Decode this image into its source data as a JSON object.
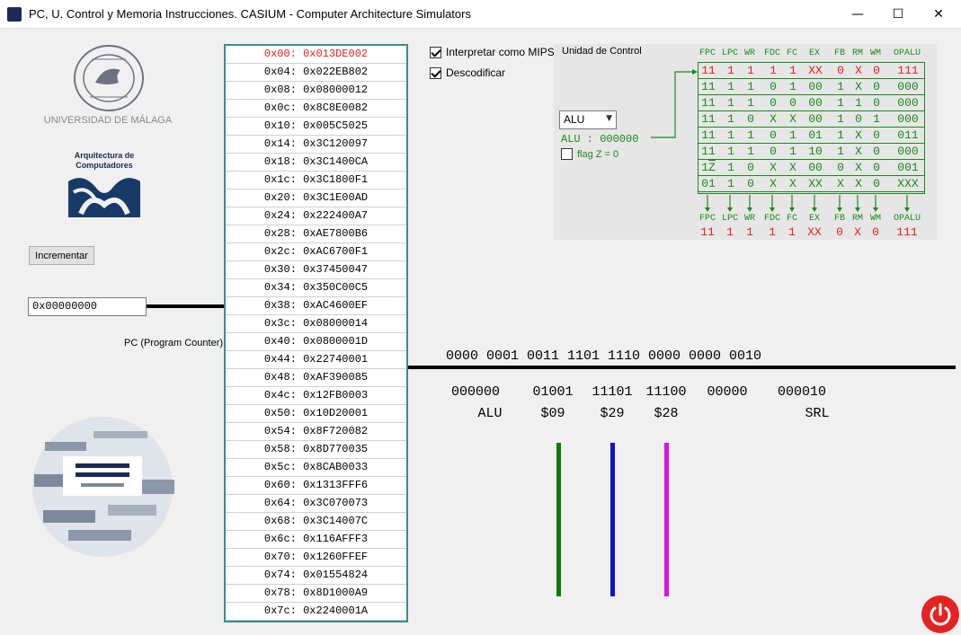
{
  "window": {
    "title": "PC, U. Control y Memoria Instrucciones. CASIUM - Computer Architecture Simulators",
    "minimize": "—",
    "maximize": "☐",
    "close": "✕"
  },
  "left": {
    "university": "UNIVERSIDAD DE MÁLAGA",
    "arq_line1": "Arquitectura de",
    "arq_line2": "Computadores",
    "increment_label": "Incrementar",
    "pc_value": "0x00000000",
    "pc_label": "PC (Program Counter)"
  },
  "memory": {
    "active_index": 0,
    "rows": [
      {
        "addr": "0x00:",
        "val": "0x013DE002"
      },
      {
        "addr": "0x04:",
        "val": "0x022EB802"
      },
      {
        "addr": "0x08:",
        "val": "0x08000012"
      },
      {
        "addr": "0x0c:",
        "val": "0x8C8E0082"
      },
      {
        "addr": "0x10:",
        "val": "0x005C5025"
      },
      {
        "addr": "0x14:",
        "val": "0x3C120097"
      },
      {
        "addr": "0x18:",
        "val": "0x3C1400CA"
      },
      {
        "addr": "0x1c:",
        "val": "0x3C1800F1"
      },
      {
        "addr": "0x20:",
        "val": "0x3C1E00AD"
      },
      {
        "addr": "0x24:",
        "val": "0x222400A7"
      },
      {
        "addr": "0x28:",
        "val": "0xAE7800B6"
      },
      {
        "addr": "0x2c:",
        "val": "0xAC6700F1"
      },
      {
        "addr": "0x30:",
        "val": "0x37450047"
      },
      {
        "addr": "0x34:",
        "val": "0x350C00C5"
      },
      {
        "addr": "0x38:",
        "val": "0xAC4600EF"
      },
      {
        "addr": "0x3c:",
        "val": "0x08000014"
      },
      {
        "addr": "0x40:",
        "val": "0x0800001D"
      },
      {
        "addr": "0x44:",
        "val": "0x22740001"
      },
      {
        "addr": "0x48:",
        "val": "0xAF390085"
      },
      {
        "addr": "0x4c:",
        "val": "0x12FB0003"
      },
      {
        "addr": "0x50:",
        "val": "0x10D20001"
      },
      {
        "addr": "0x54:",
        "val": "0x8F720082"
      },
      {
        "addr": "0x58:",
        "val": "0x8D770035"
      },
      {
        "addr": "0x5c:",
        "val": "0x8CAB0033"
      },
      {
        "addr": "0x60:",
        "val": "0x1313FFF6"
      },
      {
        "addr": "0x64:",
        "val": "0x3C070073"
      },
      {
        "addr": "0x68:",
        "val": "0x3C14007C"
      },
      {
        "addr": "0x6c:",
        "val": "0x116AFFF3"
      },
      {
        "addr": "0x70:",
        "val": "0x1260FFEF"
      },
      {
        "addr": "0x74:",
        "val": "0x01554824"
      },
      {
        "addr": "0x78:",
        "val": "0x8D1000A9"
      },
      {
        "addr": "0x7c:",
        "val": "0x2240001A"
      }
    ]
  },
  "options": {
    "interpret_mips": "Interpretar como MIPS",
    "interpret_checked": true,
    "decode": "Descodificar",
    "decode_checked": true
  },
  "control_unit": {
    "title": "Unidad de Control",
    "selected_op": "ALU",
    "alu_code": "ALU : 000000",
    "flag_label": "flag Z = 0",
    "flag_checked": false,
    "headers": [
      "FPC",
      "LPC",
      "WR",
      "FDC",
      "FC",
      "EX",
      "FB",
      "RM",
      "WM",
      "OPALU"
    ],
    "active_row": 0,
    "rows": [
      [
        "11",
        "1",
        "1",
        "1",
        "1",
        "XX",
        "0",
        "X",
        "0",
        "111"
      ],
      [
        "11",
        "1",
        "1",
        "0",
        "1",
        "00",
        "1",
        "X",
        "0",
        "000"
      ],
      [
        "11",
        "1",
        "1",
        "0",
        "0",
        "00",
        "1",
        "1",
        "0",
        "000"
      ],
      [
        "11",
        "1",
        "0",
        "X",
        "X",
        "00",
        "1",
        "0",
        "1",
        "000"
      ],
      [
        "11",
        "1",
        "1",
        "0",
        "1",
        "01",
        "1",
        "X",
        "0",
        "011"
      ],
      [
        "11",
        "1",
        "1",
        "0",
        "1",
        "10",
        "1",
        "X",
        "0",
        "000"
      ],
      [
        "1Z",
        "1",
        "0",
        "X",
        "X",
        "00",
        "0",
        "X",
        "0",
        "001"
      ],
      [
        "01",
        "1",
        "0",
        "X",
        "X",
        "XX",
        "X",
        "X",
        "0",
        "XXX"
      ]
    ],
    "output": [
      "11",
      "1",
      "1",
      "1",
      "1",
      "XX",
      "0",
      "X",
      "0",
      "111"
    ]
  },
  "decode": {
    "binary": "0000 0001 0011 1101 1110 0000 0000 0010",
    "fields": [
      "000000",
      "01001",
      "11101",
      "11100",
      "00000",
      "000010"
    ],
    "labels": [
      "ALU",
      "$09",
      "$29",
      "$28",
      "",
      "SRL"
    ],
    "bar_colors": [
      "#0a7a0a",
      "#1010d0",
      "#e010e0"
    ]
  },
  "colors": {
    "accent_green": "#1a8a1a",
    "active_red": "#e02020",
    "memory_border": "#3c8b8b"
  }
}
